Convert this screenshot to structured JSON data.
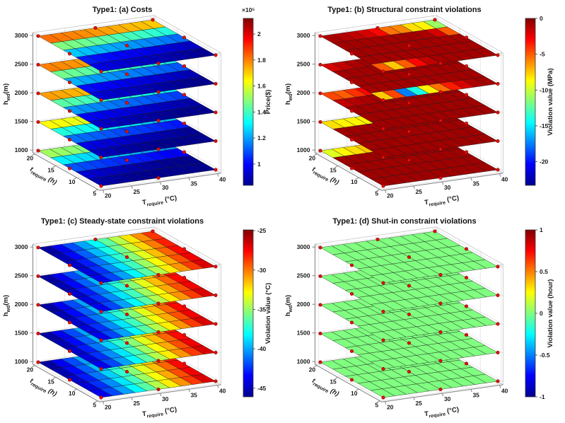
{
  "colors": {
    "background": "#ffffff",
    "marker_fill": "#e3120b",
    "marker_edge": "#8b0000",
    "mesh_line": "#1a1a1a",
    "axis_line": "#808080",
    "box_line": "#c4c4c4",
    "grid_line": "#dcdcdc",
    "text": "#1a1a1a",
    "jet_stops": [
      "#00008f",
      "#0000ff",
      "#00ffff",
      "#ffff00",
      "#ff0000",
      "#800000"
    ]
  },
  "axes": {
    "x": {
      "name": "T",
      "sub": "require",
      "unit": " (°C)",
      "ticks": [
        20,
        25,
        30,
        35,
        40
      ],
      "min": 20,
      "max": 40
    },
    "y": {
      "name": "t",
      "sub": "require",
      "unit": " (h)",
      "ticks": [
        20,
        15,
        10,
        5
      ],
      "min": 5,
      "max": 20
    },
    "z": {
      "name": "h",
      "sub": "wd",
      "unit": "(m)",
      "ticks": [
        1000,
        1500,
        2000,
        2500,
        3000
      ],
      "min": 1000,
      "max": 3000
    }
  },
  "subplots": [
    {
      "key": "a",
      "title": "Type1: (a) Costs",
      "colorbar": {
        "label": "Price($)",
        "exponent": "×10⁵",
        "ticks": [
          2,
          1.8,
          1.6,
          1.4,
          1.2,
          1
        ],
        "vmin": 0.836,
        "vmax": 2.12
      }
    },
    {
      "key": "b",
      "title": "Type1: (b) Structural constraint violations",
      "colorbar": {
        "label": "Violation value (MPa)",
        "exponent": "",
        "ticks": [
          0,
          -5,
          -10,
          -15,
          -20
        ],
        "vmin": -23.3,
        "vmax": 0
      }
    },
    {
      "key": "c",
      "title": "Type1: (c) Steady-state constraint violations",
      "colorbar": {
        "label": "Violation value (°C)",
        "exponent": "",
        "ticks": [
          -25,
          -30,
          -35,
          -40,
          -45
        ],
        "vmin": -46.1,
        "vmax": -24.9
      }
    },
    {
      "key": "d",
      "title": "Type1: (d) Shut-in constraint violations",
      "colorbar": {
        "label": "Violation value (hour)",
        "exponent": "",
        "ticks": [
          1,
          0.5,
          0,
          -0.5,
          -1
        ],
        "vmin": -1,
        "vmax": 1
      }
    }
  ],
  "chart_data": [
    {
      "subplot": "a",
      "type": "heatmap",
      "quantity": "cost",
      "value_unit": "$ x10^5",
      "T_require_range": [
        20,
        40
      ],
      "t_require_range": [
        5,
        20
      ],
      "h_wd_layers": [
        1000,
        1500,
        2000,
        2500,
        3000
      ],
      "marker_samples": {
        "T": [
          20,
          30,
          40
        ],
        "t": [
          5,
          12.5,
          20
        ]
      },
      "grid": {
        "cols": 10,
        "rows": 5,
        "row_order": "t=20 back to t=5 front"
      },
      "values_by_layer": {
        "3000": {
          "rows": [
            1.82,
            1.48,
            1.25,
            1.03,
            0.96
          ],
          "col_step": -0.013
        },
        "2500": {
          "rows": [
            1.8,
            1.46,
            1.22,
            1.01,
            0.94
          ],
          "col_step": -0.013
        },
        "2000": {
          "rows": [
            1.76,
            1.43,
            1.19,
            0.99,
            0.92
          ],
          "col_step": -0.013
        },
        "1500": {
          "rows": [
            1.64,
            1.36,
            1.14,
            0.96,
            0.9
          ],
          "col_step": -0.013
        },
        "1000": {
          "rows": [
            1.52,
            1.3,
            1.1,
            0.93,
            0.88
          ],
          "col_step": -0.013
        }
      }
    },
    {
      "subplot": "b",
      "type": "heatmap",
      "quantity": "structural constraint violation",
      "value_unit": "MPa",
      "T_require_range": [
        20,
        40
      ],
      "t_require_range": [
        5,
        20
      ],
      "h_wd_layers": [
        1000,
        1500,
        2000,
        2500,
        3000
      ],
      "marker_samples": {
        "T": [
          20,
          30,
          40
        ],
        "t": [
          5,
          12.5,
          20
        ]
      },
      "grid": {
        "cols": 10,
        "rows": 5,
        "row_order": "t=20 back to t=5 front"
      },
      "values_by_layer": {
        "3000": {
          "cells": [
            [
              -1.0,
              -1.2,
              -1.5,
              -2.0,
              -3.0,
              -5.5,
              -6.0,
              -8.0,
              -8.5,
              -11.0
            ],
            [
              -0.8,
              -0.8,
              -0.8,
              -0.8,
              -0.8,
              -0.8,
              -0.8,
              -1.0,
              -2.0,
              -5.0
            ],
            [
              -0.8,
              -0.8,
              -0.8,
              -0.8,
              -0.8,
              -0.8,
              -0.8,
              -0.8,
              -0.8,
              -0.8
            ],
            [
              -0.8,
              -0.8,
              -0.8,
              -0.8,
              -0.8,
              -0.8,
              -0.8,
              -0.8,
              -0.8,
              -0.8
            ],
            [
              -5.0,
              -7.5,
              -5.0,
              -3.0,
              -1.5,
              -0.8,
              -0.8,
              -0.8,
              -0.8,
              -0.8
            ]
          ]
        },
        "2500": {
          "cells": [
            [
              -2.0,
              -1.5,
              -1.0,
              -0.8,
              -0.8,
              -0.8,
              -0.8,
              -0.8,
              -0.8,
              -0.8
            ],
            [
              -0.8,
              -0.8,
              -0.8,
              -0.8,
              -0.8,
              -0.8,
              -0.8,
              -0.8,
              -0.8,
              -0.8
            ],
            [
              -0.8,
              -0.8,
              -0.8,
              -0.8,
              -0.8,
              -0.8,
              -0.8,
              -0.8,
              -0.8,
              -0.8
            ],
            [
              -0.8,
              -0.8,
              -0.8,
              -0.8,
              -0.8,
              -0.8,
              -0.8,
              -0.8,
              -0.8,
              -0.8
            ],
            [
              -7.5,
              -4.5,
              -17.5,
              -14.0,
              -8.5,
              -5.5,
              -3.5,
              -2.0,
              -1.0,
              -0.8
            ]
          ]
        },
        "2000": {
          "cells": [
            [
              -4.5,
              -5.0,
              -4.0,
              -3.0,
              -2.5,
              -2.0,
              -1.5,
              -1.2,
              -1.0,
              -1.0
            ],
            [
              -1.5,
              -1.2,
              -1.0,
              -0.8,
              -0.7,
              -0.7,
              -0.7,
              -0.7,
              -0.7,
              -0.7
            ],
            [
              -0.7,
              -0.7,
              -0.7,
              -0.7,
              -0.7,
              -0.7,
              -0.7,
              -0.7,
              -0.7,
              -0.7
            ],
            [
              -0.7,
              -0.7,
              -0.7,
              -0.7,
              -0.7,
              -0.7,
              -0.7,
              -0.7,
              -0.7,
              -0.7
            ],
            [
              -0.7,
              -0.7,
              -0.7,
              -0.7,
              -0.7,
              -0.7,
              -0.7,
              -0.7,
              -0.7,
              -0.7
            ]
          ]
        },
        "1500": {
          "cells": [
            [
              -8.0,
              -8.5,
              -8.5,
              -8.5,
              -8.5,
              -8.5,
              -8.5,
              -8.5,
              -9.5,
              -11.5
            ],
            [
              -0.7,
              -0.7,
              -0.7,
              -0.7,
              -0.7,
              -0.7,
              -0.7,
              -0.7,
              -0.7,
              -0.7
            ],
            [
              -0.7,
              -0.7,
              -0.7,
              -0.7,
              -0.7,
              -0.7,
              -0.7,
              -0.7,
              -0.7,
              -0.7
            ],
            [
              -0.7,
              -0.7,
              -0.7,
              -0.7,
              -0.7,
              -0.7,
              -0.7,
              -0.7,
              -0.7,
              -0.7
            ],
            [
              -0.7,
              -0.7,
              -0.7,
              -0.7,
              -0.7,
              -0.7,
              -0.7,
              -0.7,
              -0.7,
              -0.7
            ]
          ]
        },
        "1000": {
          "cells": [
            [
              -9.5,
              -8.5,
              -8.0,
              -7.5,
              -6.5,
              -6.0,
              -6.0,
              -6.5,
              -7.5,
              -8.0
            ],
            [
              -0.7,
              -0.7,
              -0.7,
              -0.7,
              -0.7,
              -0.7,
              -0.7,
              -0.7,
              -0.7,
              -0.7
            ],
            [
              -0.7,
              -0.7,
              -0.7,
              -0.7,
              -0.7,
              -0.7,
              -0.7,
              -0.7,
              -0.7,
              -0.7
            ],
            [
              -0.7,
              -0.7,
              -0.7,
              -0.7,
              -0.7,
              -0.7,
              -0.7,
              -0.7,
              -0.7,
              -0.7
            ],
            [
              -0.7,
              -0.7,
              -0.7,
              -0.7,
              -0.7,
              -0.7,
              -0.7,
              -0.7,
              -0.7,
              -0.7
            ]
          ]
        }
      }
    },
    {
      "subplot": "c",
      "type": "heatmap",
      "quantity": "steady-state constraint violation",
      "value_unit": "°C",
      "T_require_range": [
        20,
        40
      ],
      "t_require_range": [
        5,
        20
      ],
      "h_wd_layers": [
        1000,
        1500,
        2000,
        2500,
        3000
      ],
      "marker_samples": {
        "T": [
          20,
          30,
          40
        ],
        "t": [
          5,
          12.5,
          20
        ]
      },
      "grid": {
        "cols": 10,
        "rows": 5,
        "row_order": "t=20 back to t=5 front"
      },
      "values_by_layer": {
        "3000": {
          "cols": [
            -44.8,
            -42.9,
            -41.0,
            -39.1,
            -37.2,
            -35.3,
            -33.4,
            -31.5,
            -29.6,
            -27.7
          ],
          "row_step": 0.45
        },
        "2500": {
          "cols": [
            -44.8,
            -42.9,
            -41.0,
            -39.1,
            -37.2,
            -35.3,
            -33.4,
            -31.5,
            -29.6,
            -27.7
          ],
          "row_step": 0.45
        },
        "2000": {
          "cols": [
            -44.8,
            -42.9,
            -41.0,
            -39.1,
            -37.2,
            -35.3,
            -33.4,
            -31.5,
            -29.6,
            -27.7
          ],
          "row_step": 0.45
        },
        "1500": {
          "cols": [
            -44.8,
            -42.9,
            -41.0,
            -39.1,
            -37.2,
            -35.3,
            -33.4,
            -31.5,
            -29.6,
            -27.7
          ],
          "row_step": 0.45
        },
        "1000": {
          "cols": [
            -44.8,
            -42.9,
            -41.0,
            -39.1,
            -37.2,
            -35.3,
            -33.4,
            -31.5,
            -29.6,
            -27.7
          ],
          "row_step": 0.45
        }
      }
    },
    {
      "subplot": "d",
      "type": "heatmap",
      "quantity": "shut-in constraint violation",
      "value_unit": "hour",
      "T_require_range": [
        20,
        40
      ],
      "t_require_range": [
        5,
        20
      ],
      "h_wd_layers": [
        1000,
        1500,
        2000,
        2500,
        3000
      ],
      "marker_samples": {
        "T": [
          20,
          30,
          40
        ],
        "t": [
          5,
          12.5,
          20
        ]
      },
      "grid": {
        "cols": 10,
        "rows": 5,
        "row_order": "t=20 back to t=5 front"
      },
      "values_by_layer": {
        "3000": {
          "rows": [
            0,
            0,
            0,
            0,
            0
          ],
          "col_step": 0
        },
        "2500": {
          "rows": [
            0,
            0,
            0,
            0,
            0
          ],
          "col_step": 0
        },
        "2000": {
          "rows": [
            0,
            0,
            0,
            0,
            0
          ],
          "col_step": 0
        },
        "1500": {
          "rows": [
            0,
            0,
            0,
            0,
            0
          ],
          "col_step": 0
        },
        "1000": {
          "rows": [
            0,
            0,
            0,
            0,
            0
          ],
          "col_step": 0
        }
      }
    }
  ]
}
